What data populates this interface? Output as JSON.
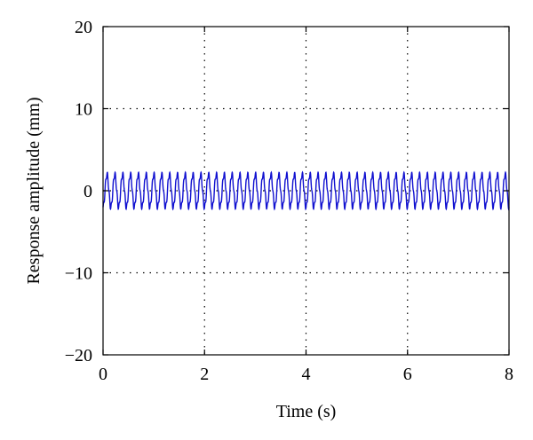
{
  "chart_data": {
    "type": "line",
    "title": "",
    "xlabel": "Time (s)",
    "ylabel": "Response amplitude (mm)",
    "xlim": [
      0,
      8
    ],
    "ylim": [
      -20,
      20
    ],
    "xticks": [
      0,
      2,
      4,
      6,
      8
    ],
    "yticks": [
      -20,
      -10,
      0,
      10,
      20
    ],
    "xtick_labels": [
      "0",
      "2",
      "4",
      "6",
      "8"
    ],
    "ytick_labels": [
      "−20",
      "−10",
      "0",
      "10",
      "20"
    ],
    "grid": true,
    "legend": "none",
    "series": [
      {
        "color": "#1010d0",
        "signal": {
          "kind": "sinusoid",
          "amplitude_mm": 2.0,
          "frequency_hz": 6.5,
          "ripple_amplitude_mm": 0.35,
          "ripple_frequency_hz": 26,
          "t_start": 0,
          "t_end": 8
        }
      }
    ]
  }
}
